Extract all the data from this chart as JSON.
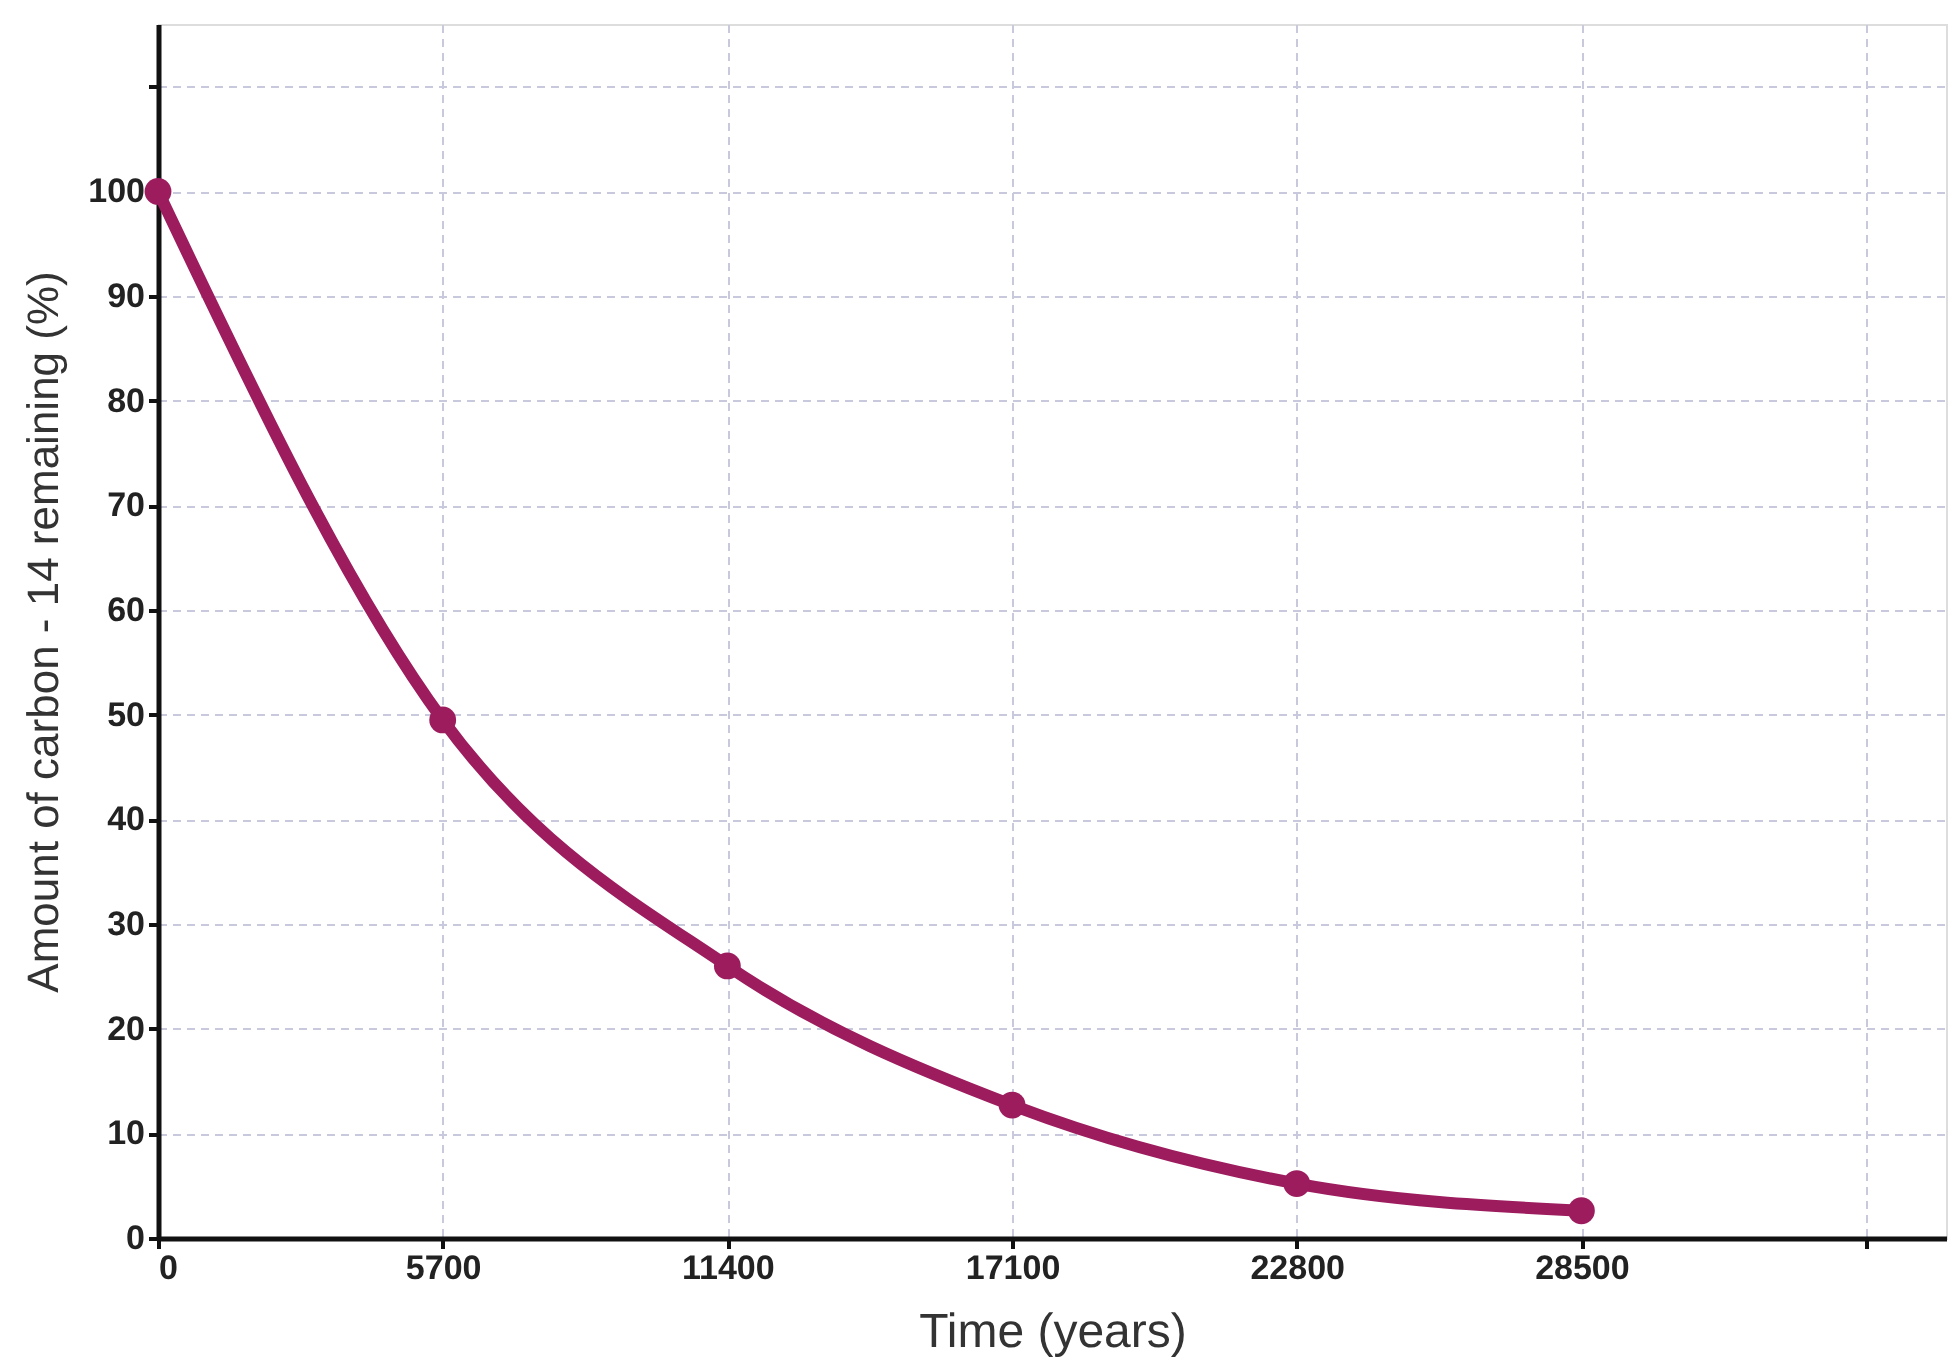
{
  "chart_data": {
    "type": "line",
    "xlabel": "Time (years)",
    "ylabel": "Amount of carbon - 14 remaining (%)",
    "x": [
      0,
      5700,
      11400,
      17100,
      22800,
      28500
    ],
    "series": [
      {
        "color": "#9c1c5e",
        "values": [
          100,
          49.5,
          26,
          12.7,
          5.2,
          2.6
        ]
      }
    ],
    "xlim": [
      0,
      35800
    ],
    "xticks": [
      0,
      5700,
      11400,
      17100,
      22800,
      28500,
      {
        "value": 34200,
        "label": null
      }
    ],
    "ylim": [
      0,
      116
    ],
    "yticks": [
      0,
      10,
      20,
      30,
      40,
      50,
      60,
      70,
      80,
      90,
      100,
      {
        "value": 110,
        "label": null
      }
    ],
    "grid": true,
    "marker": "circle",
    "line_style": "solid"
  }
}
